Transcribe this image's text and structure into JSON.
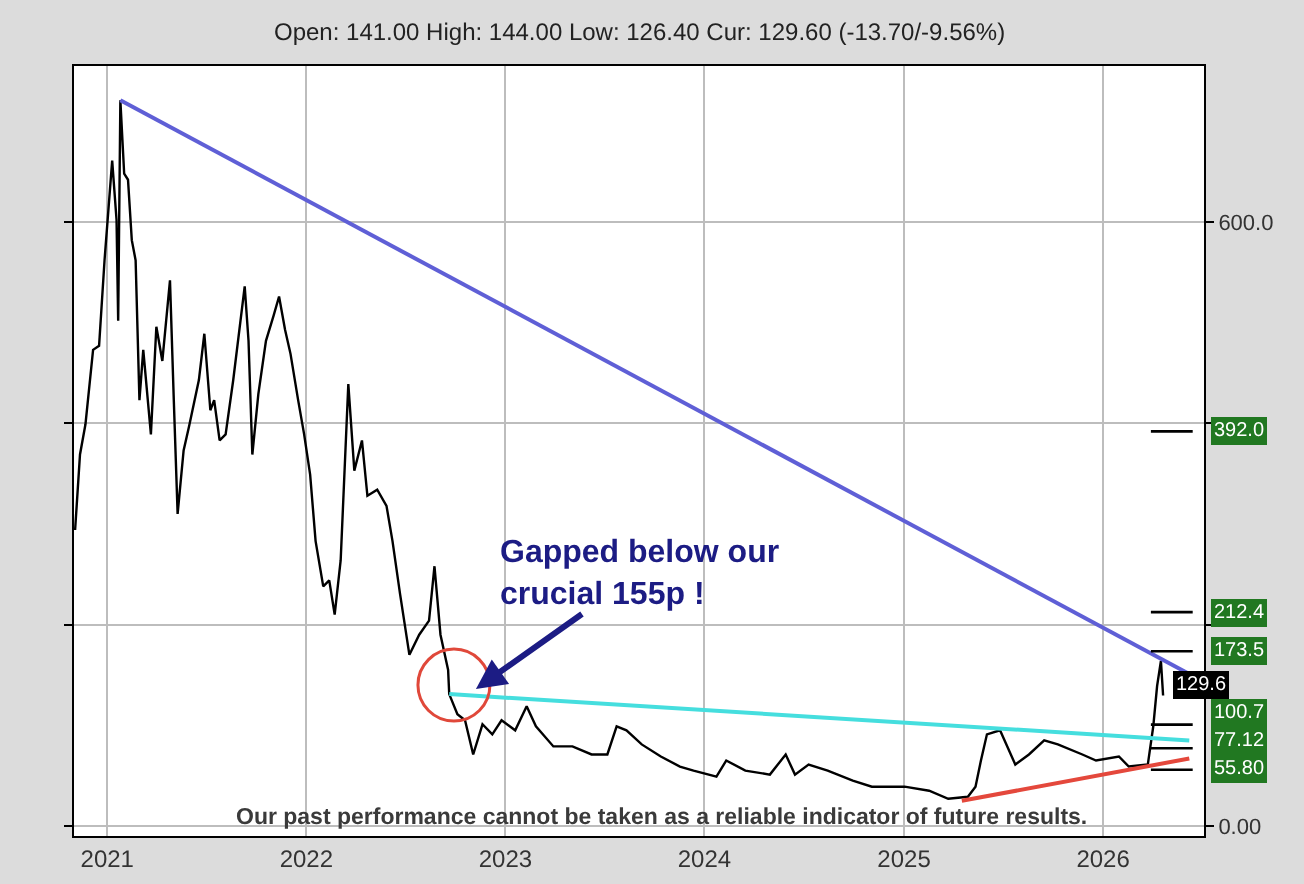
{
  "chart_data": {
    "type": "line",
    "subtitle": "Open: 141.00 High: 144.00 Low: 126.40 Cur: 129.60 (-13.70/-9.56%)",
    "x": [
      "2020-11-03",
      "2020-11-12",
      "2020-11-22",
      "2020-12-06",
      "2020-12-17",
      "2020-12-27",
      "2021-01-10",
      "2021-01-18",
      "2021-01-21",
      "2021-01-25",
      "2021-02-01",
      "2021-02-08",
      "2021-02-15",
      "2021-02-22",
      "2021-03-01",
      "2021-03-08",
      "2021-03-22",
      "2021-04-01",
      "2021-04-12",
      "2021-04-26",
      "2021-05-03",
      "2021-05-10",
      "2021-05-21",
      "2021-05-31",
      "2021-06-18",
      "2021-06-28",
      "2021-07-09",
      "2021-07-16",
      "2021-07-26",
      "2021-08-06",
      "2021-08-20",
      "2021-09-10",
      "2021-09-17",
      "2021-09-24",
      "2021-10-05",
      "2021-10-19",
      "2021-11-02",
      "2021-11-12",
      "2021-11-23",
      "2021-12-03",
      "2021-12-17",
      "2021-12-28",
      "2022-01-08",
      "2022-01-18",
      "2022-02-01",
      "2022-02-12",
      "2022-02-22",
      "2022-03-05",
      "2022-03-19",
      "2022-03-30",
      "2022-04-13",
      "2022-04-23",
      "2022-05-11",
      "2022-05-28",
      "2022-06-08",
      "2022-06-22",
      "2022-07-09",
      "2022-07-27",
      "2022-08-14",
      "2022-08-24",
      "2022-09-04",
      "2022-09-18",
      "2022-09-20",
      "2022-10-05",
      "2022-10-19",
      "2022-11-03",
      "2022-11-20",
      "2022-12-08",
      "2022-12-25",
      "2023-01-19",
      "2023-02-09",
      "2023-02-26",
      "2023-03-30",
      "2023-05-04",
      "2023-06-08",
      "2023-07-07",
      "2023-07-24",
      "2023-08-11",
      "2023-09-08",
      "2023-10-13",
      "2023-11-17",
      "2023-12-12",
      "2024-01-23",
      "2024-02-10",
      "2024-03-16",
      "2024-04-30",
      "2024-05-29",
      "2024-06-15",
      "2024-07-10",
      "2024-08-14",
      "2024-09-29",
      "2024-11-03",
      "2025-01-02",
      "2025-02-16",
      "2025-03-23",
      "2025-04-28",
      "2025-05-12",
      "2025-05-22",
      "2025-06-02",
      "2025-06-26",
      "2025-07-24",
      "2025-08-18",
      "2025-09-15",
      "2025-10-10",
      "2025-11-24",
      "2025-12-19",
      "2026-01-30",
      "2026-02-17",
      "2026-03-24",
      "2026-04-03",
      "2026-04-10",
      "2026-04-17",
      "2026-04-21"
    ],
    "series": [
      {
        "color": "#000000",
        "values": [
          294,
          369,
          399,
          473,
          477,
          562,
          661,
          602,
          502,
          721,
          648,
          642,
          582,
          562,
          423,
          473,
          389,
          496,
          462,
          542,
          423,
          310,
          373,
          397,
          443,
          489,
          413,
          423,
          383,
          389,
          443,
          536,
          482,
          369,
          429,
          482,
          507,
          526,
          493,
          469,
          423,
          389,
          349,
          283,
          238,
          244,
          210,
          264,
          439,
          353,
          383,
          328,
          334,
          318,
          283,
          230,
          170,
          190,
          204,
          258,
          190,
          155,
          131,
          111,
          105,
          71,
          101,
          91,
          105,
          95,
          119,
          99,
          79,
          79,
          71,
          71,
          99,
          95,
          81,
          69,
          59,
          55,
          49,
          65,
          55,
          51,
          71,
          51,
          61,
          55,
          45,
          39,
          39,
          35,
          27,
          29,
          39,
          65,
          91,
          95,
          61,
          71,
          85,
          81,
          71,
          65,
          69,
          59,
          61,
          99,
          139,
          164,
          129.6
        ],
        "value_labels": [
          null,
          null,
          null,
          null,
          null,
          null,
          null,
          null,
          null,
          null,
          null,
          null,
          null,
          null,
          null,
          null,
          null,
          null,
          null,
          null,
          null,
          null,
          null,
          null,
          null,
          null,
          null,
          null,
          null,
          null,
          null,
          null,
          null,
          null,
          null,
          null,
          null,
          null,
          null,
          null,
          null,
          null,
          null,
          null,
          null,
          null,
          null,
          null,
          null,
          null,
          null,
          null,
          null,
          null,
          null,
          null,
          null,
          null,
          null,
          null,
          null,
          null,
          null,
          null,
          null,
          null,
          null,
          null,
          null,
          null,
          null,
          null,
          null,
          null,
          null,
          null,
          null,
          null,
          null,
          null,
          null,
          null,
          null,
          null,
          null,
          null,
          null,
          null,
          null,
          null,
          null,
          null,
          null,
          null,
          null,
          null,
          null,
          null,
          null,
          null,
          null,
          null,
          null,
          null,
          null,
          null,
          null,
          null,
          null,
          null,
          null,
          null,
          "129.6"
        ]
      },
      {
        "color": "#5f5fd6",
        "x": [
          "2021-01-25",
          "2026-06-08"
        ],
        "values": [
          721,
          151
        ]
      },
      {
        "color": "#45dede",
        "x": [
          "2022-09-20",
          "2026-06-08"
        ],
        "values": [
          131,
          85
        ]
      },
      {
        "color": "#e4483c",
        "x": [
          "2025-04-17",
          "2026-06-08"
        ],
        "values": [
          25,
          67
        ]
      }
    ],
    "xlim": [
      "2020-11-01",
      "2026-07-05"
    ],
    "xticks": [
      "2021",
      "2022",
      "2023",
      "2024",
      "2025",
      "2026"
    ],
    "ylim": [
      -10,
      755
    ],
    "yticks": [
      {
        "value": 0,
        "label": "0.00"
      },
      {
        "value": 200,
        "label": null
      },
      {
        "value": 400,
        "label": null
      },
      {
        "value": 600,
        "label": "600.0"
      }
    ],
    "grid": true,
    "line_style": "solid",
    "ref_lines": [
      {
        "axis": "y",
        "value": 392.0,
        "label": "392.0",
        "color": "#000000",
        "line_style": "solid"
      },
      {
        "axis": "y",
        "value": 212.4,
        "label": "212.4",
        "color": "#000000",
        "line_style": "solid"
      },
      {
        "axis": "y",
        "value": 173.5,
        "label": "173.5",
        "color": "#000000",
        "line_style": "solid"
      },
      {
        "axis": "y",
        "value": 100.7,
        "label": "100.7",
        "color": "#000000",
        "line_style": "solid"
      },
      {
        "axis": "y",
        "value": 77.12,
        "label": "77.12",
        "color": "#000000",
        "line_style": "solid"
      },
      {
        "axis": "y",
        "value": 55.8,
        "label": "55.80",
        "color": "#000000",
        "line_style": "solid"
      }
    ],
    "annotations": [
      {
        "text": "Gapped below our\ncrucial 155p !",
        "x": "2022-11-08",
        "y": 136
      },
      "Our past performance cannot be taken as a reliable indicator of future results."
    ]
  }
}
